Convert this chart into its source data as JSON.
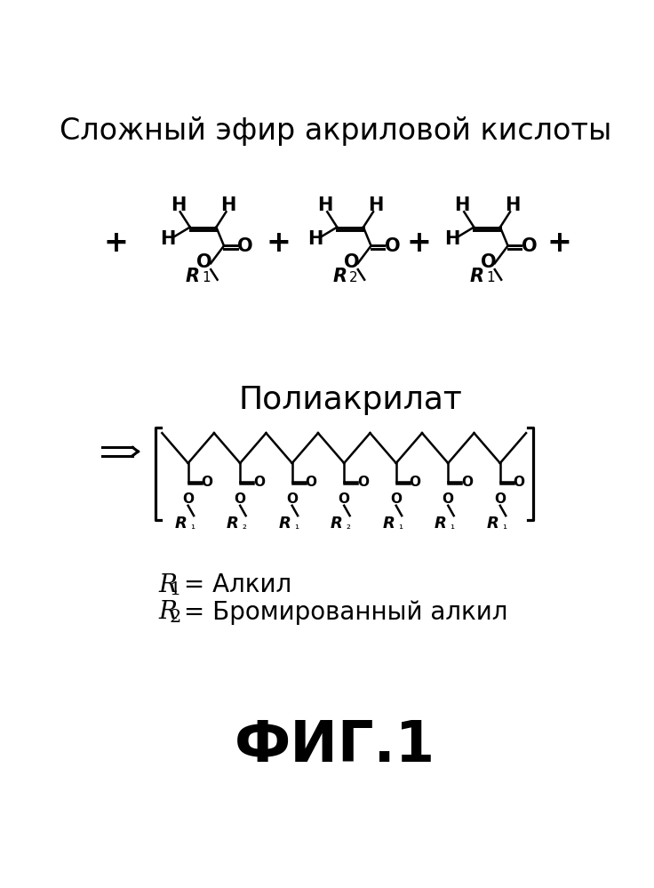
{
  "title_text": "Сложный эфир акриловой кислоты",
  "polyacrylate_label": "Полиакрилат",
  "fig_label": "ФИГ.1",
  "bg_color": "#ffffff",
  "text_color": "#000000",
  "lw": 1.8
}
